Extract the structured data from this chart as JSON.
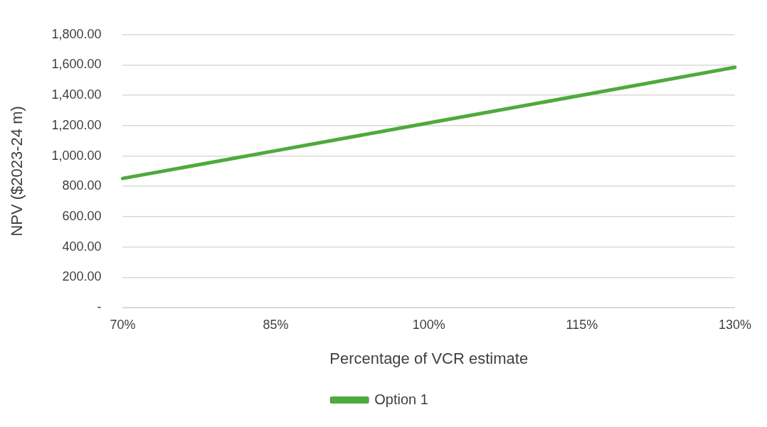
{
  "chart_data": {
    "type": "line",
    "xlabel": "Percentage of VCR estimate",
    "ylabel": "NPV ($2023-24 m)",
    "categories": [
      "70%",
      "85%",
      "100%",
      "115%",
      "130%"
    ],
    "series": [
      {
        "name": "Option 1",
        "color": "#4eaa3c",
        "values": [
          852,
          1035,
          1218,
          1401,
          1585
        ]
      }
    ],
    "ylim": [
      0,
      1800
    ],
    "yticks": [
      {
        "value": 0,
        "label": "-"
      },
      {
        "value": 200,
        "label": "200.00"
      },
      {
        "value": 400,
        "label": "400.00"
      },
      {
        "value": 600,
        "label": "600.00"
      },
      {
        "value": 800,
        "label": "800.00"
      },
      {
        "value": 1000,
        "label": "1,000.00"
      },
      {
        "value": 1200,
        "label": "1,200.00"
      },
      {
        "value": 1400,
        "label": "1,400.00"
      },
      {
        "value": 1600,
        "label": "1,600.00"
      },
      {
        "value": 1800,
        "label": "1,800.00"
      }
    ],
    "grid": "y",
    "legend": "bottom",
    "marker": "none",
    "line_style": "solid"
  }
}
